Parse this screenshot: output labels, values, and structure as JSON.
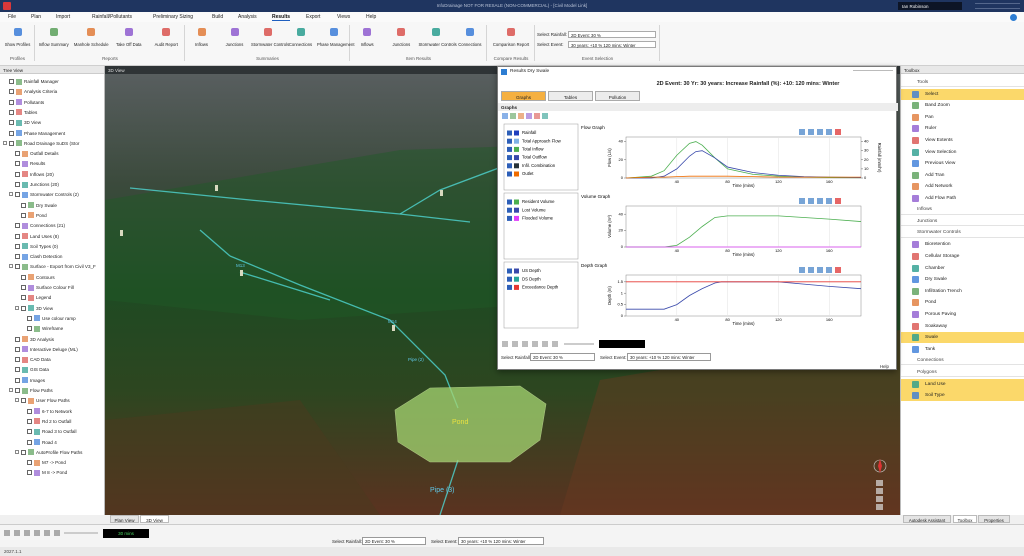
{
  "titlebar": {
    "title": "InfoDrainage NOT FOR RESALE (NON-COMMERCIAL) - [Civil Model Link]",
    "user": "Ian Robinson"
  },
  "menu": [
    "File",
    "Plan",
    "Import",
    "Rainfall/Pollutants",
    "Preliminary Sizing",
    "Build",
    "Analysis",
    {
      "label": "Results",
      "active": true
    },
    "Export",
    "Views",
    "Help"
  ],
  "ribbon": {
    "groups": [
      {
        "name": "Profiles",
        "buttons": [
          "Show Profiles"
        ]
      },
      {
        "name": "Reports",
        "buttons": [
          "Inflow Summary",
          "Manhole Schedule",
          "Take Off Data",
          "Audit Report"
        ]
      },
      {
        "name": "Summaries",
        "buttons": [
          "Inflows",
          "Junctions",
          "Stormwater Controls",
          "Connections",
          "Phase Management"
        ]
      },
      {
        "name": "Item Results",
        "buttons": [
          "Inflows",
          "Junctions",
          "Stormwater Controls",
          "Connections"
        ]
      },
      {
        "name": "Compare Results",
        "buttons": [
          "Comparison Report"
        ]
      },
      {
        "name": "Event Selection",
        "fields": [
          {
            "label": "Select Rainfall:",
            "value": "2D Event: 30 %"
          },
          {
            "label": "Select Event:",
            "value": "30 years: +10 % 120 mins: Winter"
          }
        ]
      }
    ]
  },
  "tree_view": {
    "title": "Tree View",
    "items": [
      {
        "label": "Rainfall Manager"
      },
      {
        "label": "Analysis Criteria"
      },
      {
        "label": "Pollutants"
      },
      {
        "label": "Tables"
      },
      {
        "label": "3D View"
      },
      {
        "label": "Phase Management"
      },
      {
        "label": "Road Drainage SuDS (Stor",
        "children": [
          {
            "label": "Outfall Details"
          },
          {
            "label": "Results"
          },
          {
            "label": "Inflows (20)"
          },
          {
            "label": "Junctions (20)"
          },
          {
            "label": "Stormwater Controls (2)",
            "children": [
              {
                "label": "Dry Swale"
              },
              {
                "label": "Pond"
              }
            ]
          },
          {
            "label": "Connections (21)"
          },
          {
            "label": "Land Uses (8)"
          },
          {
            "label": "Soil Types (0)"
          },
          {
            "label": "Clash Detection"
          },
          {
            "label": "Surface - Export from Civil V3_F",
            "children": [
              {
                "label": "Contours"
              },
              {
                "label": "Surface Colour Fill"
              },
              {
                "label": "Legend"
              },
              {
                "label": "3D View",
                "children": [
                  {
                    "label": "Use colour ramp"
                  },
                  {
                    "label": "Wireframe"
                  }
                ]
              }
            ]
          },
          {
            "label": "3D Analysis"
          },
          {
            "label": "Interactive Deluge (ML)"
          },
          {
            "label": "CAD Data"
          },
          {
            "label": "GIS Data"
          },
          {
            "label": "Images"
          },
          {
            "label": "Flow Paths",
            "children": [
              {
                "label": "User Flow Paths",
                "children": [
                  {
                    "label": "6-7 to Network"
                  },
                  {
                    "label": "Rd 2 to Outfall"
                  },
                  {
                    "label": "Road 3 to Outfall"
                  },
                  {
                    "label": "Road 4"
                  }
                ]
              },
              {
                "label": "AutoProfile Flow Paths",
                "children": [
                  {
                    "label": "M7 -> Pond"
                  },
                  {
                    "label": "M 8 -> Pond"
                  }
                ]
              }
            ]
          }
        ]
      }
    ]
  },
  "view_3d": {
    "title": "3D View",
    "labels": [
      "Pond",
      "Pipe (3)",
      "Pipe (2)",
      "M14",
      "M13"
    ]
  },
  "view_tabs": [
    "Plan View",
    "3D View"
  ],
  "results_window": {
    "title": "Results Dry Swale",
    "header": "2D Event: 30 Yr: 30 years: Increase Rainfall (%): +10: 120 mins: Winter",
    "tabs": [
      "Graphs",
      "Tables",
      "Pollution"
    ],
    "section": "Graphs",
    "graphs": [
      {
        "title": "Flow Graph",
        "legend": [
          {
            "name": "Rainfall",
            "color": "#1f3fbf"
          },
          {
            "name": "Total Approach Flow",
            "color": "#7fb3e6"
          },
          {
            "name": "Total Inflow",
            "color": "#4caf50"
          },
          {
            "name": "Total Outflow",
            "color": "#3949ab"
          },
          {
            "name": "Infil. Combination",
            "color": "#263238"
          },
          {
            "name": "Outlet",
            "color": "#ef6c00"
          }
        ],
        "ylabel": "Flow (L/s)",
        "y2label": "Rainfall (mm/hr)",
        "xlabel": "Time (mins)",
        "xlim": [
          0,
          185
        ],
        "xticks": [
          40,
          80,
          120,
          160
        ],
        "ylim": [
          0,
          45
        ],
        "yticks": [
          0,
          20,
          40
        ],
        "y2lim": [
          0,
          45
        ],
        "y2ticks": [
          0,
          10,
          20,
          30,
          40
        ],
        "grid": true,
        "x": [
          0,
          20,
          30,
          40,
          50,
          55,
          60,
          70,
          80,
          100,
          120,
          140,
          160,
          185
        ],
        "series": [
          {
            "name": "Total Inflow",
            "color": "#4caf50",
            "values": [
              0,
              2,
              8,
              25,
              38,
              40,
              36,
              22,
              10,
              4,
              2,
              1,
              0.5,
              0.3
            ]
          },
          {
            "name": "Total Outflow",
            "color": "#3949ab",
            "values": [
              0,
              0,
              2,
              10,
              24,
              29,
              30,
              22,
              12,
              6,
              3,
              1.5,
              1,
              0.5
            ]
          },
          {
            "name": "Outlet",
            "color": "#ef6c00",
            "values": [
              0,
              1,
              1,
              1.5,
              2,
              2,
              2,
              2,
              2,
              1.5,
              1,
              1,
              1,
              1
            ]
          }
        ]
      },
      {
        "title": "Volume Graph",
        "legend": [
          {
            "name": "Resident Volume",
            "color": "#4caf50"
          },
          {
            "name": "Lost Volume",
            "color": "#3949ab"
          },
          {
            "name": "Flooded Volume",
            "color": "#e040fb"
          }
        ],
        "ylabel": "Volume (m³)",
        "xlabel": "Time (mins)",
        "xlim": [
          0,
          185
        ],
        "xticks": [
          40,
          80,
          120,
          160
        ],
        "ylim": [
          0,
          50
        ],
        "yticks": [
          0,
          20,
          40
        ],
        "grid": true,
        "x": [
          0,
          30,
          40,
          50,
          60,
          70,
          80,
          100,
          120,
          140,
          160,
          185
        ],
        "series": [
          {
            "name": "Resident Volume",
            "color": "#4caf50",
            "values": [
              0,
              0,
              2,
              12,
              25,
              36,
              38,
              38,
              38,
              36,
              34,
              31
            ]
          },
          {
            "name": "Flooded Volume",
            "color": "#e040fb",
            "values": [
              0,
              0,
              0,
              0,
              0,
              0,
              0,
              0,
              0,
              0,
              0,
              0
            ]
          }
        ]
      },
      {
        "title": "Depth Graph",
        "legend": [
          {
            "name": "US Depth",
            "color": "#3949ab"
          },
          {
            "name": "DS Depth",
            "color": "#26a69a"
          },
          {
            "name": "Exceedance Depth",
            "color": "#e53935"
          }
        ],
        "ylabel": "Depth (m)",
        "xlabel": "Time (mins)",
        "xlim": [
          0,
          185
        ],
        "xticks": [
          40,
          80,
          120,
          160
        ],
        "ylim": [
          0,
          1.8
        ],
        "yticks": [
          0,
          0.5,
          1,
          1.5
        ],
        "grid": true,
        "x": [
          0,
          30,
          40,
          50,
          60,
          70,
          75,
          80,
          100,
          120,
          140,
          160,
          185
        ],
        "series": [
          {
            "name": "US Depth",
            "color": "#3949ab",
            "values": [
              0.3,
              0.3,
              0.5,
              0.9,
              1.2,
              1.45,
              1.5,
              1.5,
              1.5,
              1.5,
              1.4,
              1.3,
              1.2
            ]
          },
          {
            "name": "Exceedance Depth",
            "color": "#e53935",
            "values": [
              1.5,
              1.5,
              1.5,
              1.5,
              1.5,
              1.5,
              1.5,
              1.5,
              1.5,
              1.5,
              1.5,
              1.5,
              1.5
            ]
          }
        ]
      }
    ],
    "rainfall_label": "Select Rainfall:",
    "rainfall": "2D Event: 30 %",
    "event_label": "Select Event:",
    "event": "30 years: +10 % 120 mins: Winter",
    "help": "Help"
  },
  "toolbox": {
    "title": "Toolbox",
    "sections": [
      {
        "name": "Tools",
        "items": [
          {
            "label": "Select",
            "highlighted": true
          },
          {
            "label": "Band Zoom"
          },
          {
            "label": "Pan"
          },
          {
            "label": "Ruler"
          },
          {
            "label": "View Extents"
          },
          {
            "label": "View Selection"
          },
          {
            "label": "Previous View"
          },
          {
            "label": "Add Tran"
          },
          {
            "label": "Add Network"
          },
          {
            "label": "Add Flow Path"
          }
        ]
      },
      {
        "name": "Inflows"
      },
      {
        "name": "Junctions"
      },
      {
        "name": "Stormwater Controls",
        "items": [
          {
            "label": "Bioretention"
          },
          {
            "label": "Cellular Storage"
          },
          {
            "label": "Chamber"
          },
          {
            "label": "Dry Swale"
          },
          {
            "label": "Infiltration Trench"
          },
          {
            "label": "Pond"
          },
          {
            "label": "Porous Paving"
          },
          {
            "label": "Soakaway"
          },
          {
            "label": "Swale",
            "highlighted": true
          },
          {
            "label": "Tank"
          }
        ]
      },
      {
        "name": "Connections"
      },
      {
        "name": "Polygons",
        "items": [
          {
            "label": "Land Use",
            "highlighted": true
          },
          {
            "label": "Soil Type",
            "highlighted": true
          }
        ]
      }
    ],
    "tabs": [
      "Autodesk Assistant",
      "Toolbox",
      "Properties"
    ]
  },
  "bottom_bar": {
    "time": "30 mins",
    "rainfall_label": "Select Rainfall:",
    "rainfall": "2D Event: 30 %",
    "event_label": "Select Event:",
    "event": "30 years: +10 % 120 mins: Winter"
  },
  "status": "2027.1.1"
}
